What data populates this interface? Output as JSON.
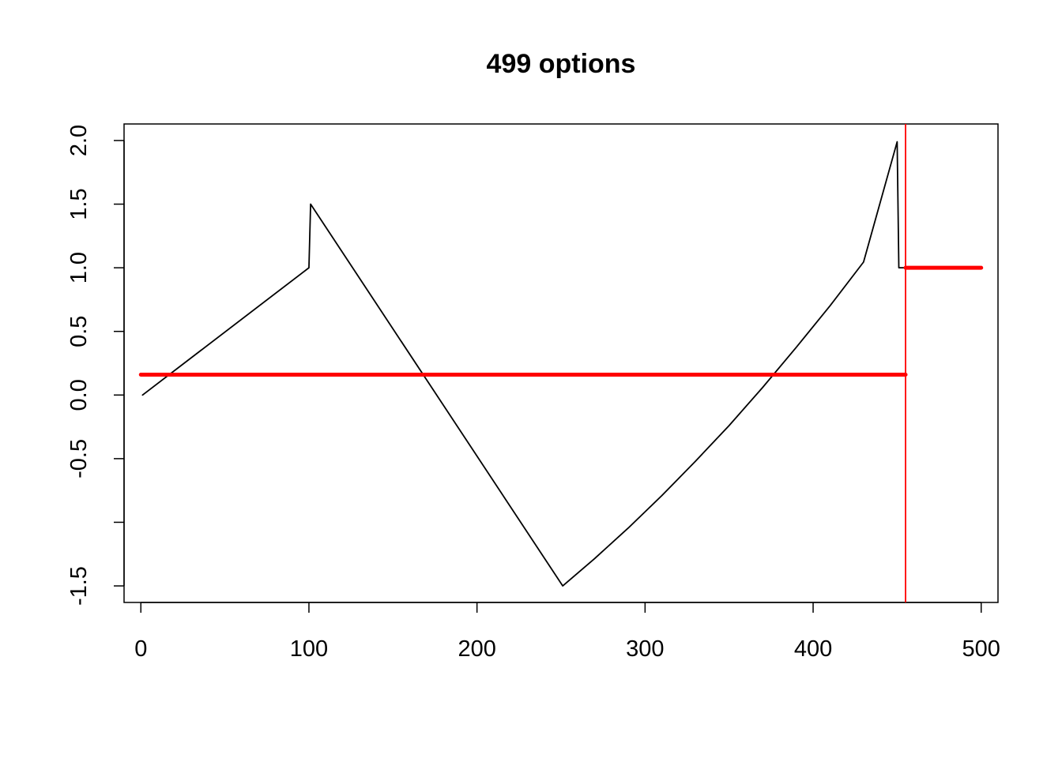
{
  "chart_data": {
    "type": "line",
    "title": "499 options",
    "xlabel": "",
    "ylabel": "",
    "xlim": [
      -10,
      510
    ],
    "ylim": [
      -1.63,
      2.13
    ],
    "x_ticks": [
      0,
      100,
      200,
      300,
      400,
      500
    ],
    "x_tick_labels": [
      "0",
      "100",
      "200",
      "300",
      "400",
      "500"
    ],
    "y_ticks": [
      -1.5,
      -1.0,
      -0.5,
      0.0,
      0.5,
      1.0,
      1.5,
      2.0
    ],
    "y_tick_labels": [
      "-1.5",
      "",
      "-0.5",
      "0.0",
      "0.5",
      "1.0",
      "1.5",
      "2.0"
    ],
    "grid": false,
    "legend": "none",
    "series": [
      {
        "color": "#000000",
        "line_width": "thin",
        "x": [
          1,
          100,
          101,
          251,
          270,
          290,
          310,
          330,
          350,
          370,
          390,
          410,
          430,
          450,
          451,
          455
        ],
        "y": [
          0.0,
          1.0,
          1.5,
          -1.5,
          -1.285,
          -1.045,
          -0.79,
          -0.52,
          -0.24,
          0.06,
          0.375,
          0.7,
          1.045,
          1.99,
          1.0,
          1.0
        ]
      },
      {
        "color": "#ff0000",
        "line_width": "thick",
        "x": [
          0,
          455
        ],
        "y": [
          0.16,
          0.16
        ]
      },
      {
        "color": "#ff0000",
        "line_width": "thick",
        "x": [
          455,
          500
        ],
        "y": [
          1.0,
          1.0
        ]
      }
    ],
    "vertical_lines": [
      {
        "x": 455,
        "color": "#ff0000"
      }
    ]
  }
}
